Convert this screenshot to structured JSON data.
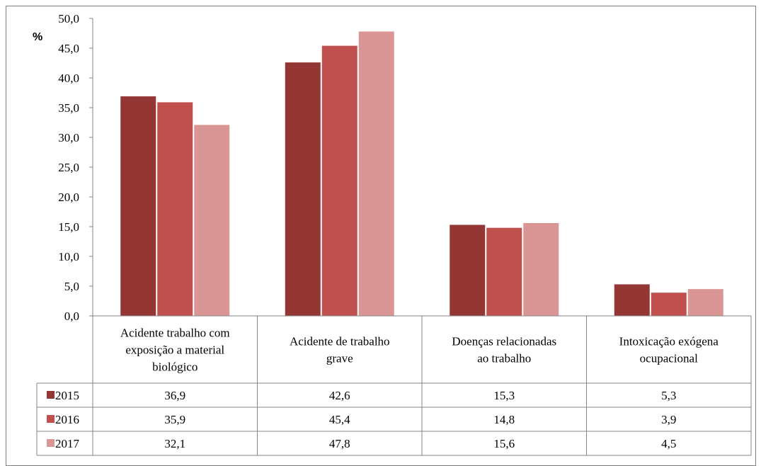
{
  "chart_data": {
    "type": "bar",
    "ylabel": "%",
    "ylim": [
      0,
      50
    ],
    "yticks": [
      "0,0",
      "5,0",
      "10,0",
      "15,0",
      "20,0",
      "25,0",
      "30,0",
      "35,0",
      "40,0",
      "45,0",
      "50,0"
    ],
    "categories": [
      [
        "Acidente trabalho com",
        "exposição a material",
        "biológico"
      ],
      [
        "Acidente de trabalho",
        "grave"
      ],
      [
        "Doenças relacionadas",
        "ao trabalho"
      ],
      [
        "Intoxicação exógena",
        "ocupacional"
      ]
    ],
    "series": [
      {
        "name": "2015",
        "color": "#943634",
        "values": [
          36.9,
          42.6,
          15.3,
          5.3
        ],
        "labels": [
          "36,9",
          "42,6",
          "15,3",
          "5,3"
        ]
      },
      {
        "name": "2016",
        "color": "#c0504d",
        "values": [
          35.9,
          45.4,
          14.8,
          3.9
        ],
        "labels": [
          "35,9",
          "45,4",
          "14,8",
          "3,9"
        ]
      },
      {
        "name": "2017",
        "color": "#d99694",
        "values": [
          32.1,
          47.8,
          15.6,
          4.5
        ],
        "labels": [
          "32,1",
          "47,8",
          "15,6",
          "4,5"
        ]
      }
    ],
    "grid": false,
    "legend": "data-table"
  }
}
